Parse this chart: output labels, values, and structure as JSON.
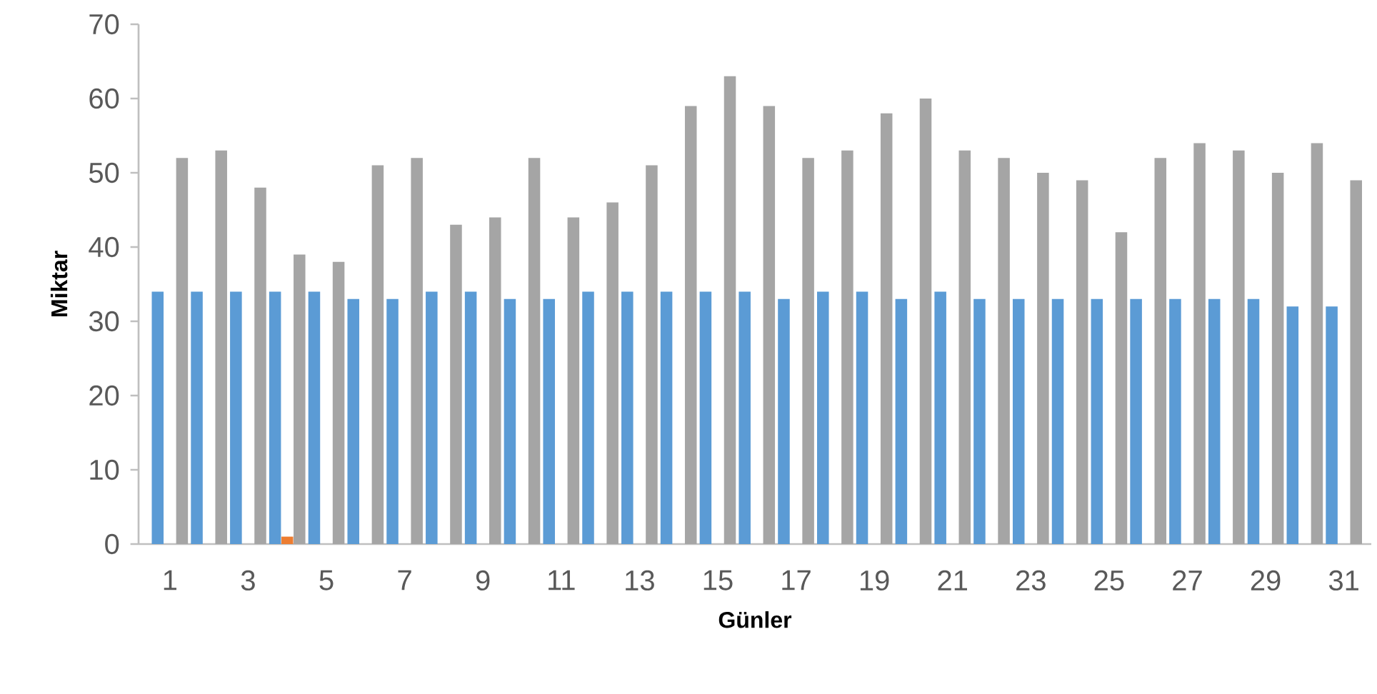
{
  "chart_data": {
    "type": "bar",
    "xlabel": "Günler",
    "ylabel": "Miktar",
    "categories": [
      "1",
      null,
      "3",
      null,
      "5",
      null,
      "7",
      null,
      "9",
      null,
      "11",
      null,
      "13",
      null,
      "15",
      null,
      "17",
      null,
      "19",
      null,
      "21",
      null,
      "23",
      null,
      "25",
      null,
      "27",
      null,
      "29",
      null,
      "31"
    ],
    "series": [
      {
        "color": "#5b9bd5",
        "values": [
          34,
          34,
          34,
          34,
          34,
          33,
          33,
          34,
          34,
          33,
          33,
          34,
          34,
          34,
          34,
          34,
          33,
          34,
          34,
          33,
          34,
          33,
          33,
          33,
          33,
          33,
          33,
          33,
          33,
          32,
          32
        ]
      },
      {
        "color": "#ed7d31",
        "values": [
          null,
          null,
          null,
          1,
          null,
          null,
          null,
          null,
          null,
          null,
          null,
          null,
          null,
          null,
          null,
          null,
          null,
          null,
          null,
          null,
          null,
          null,
          null,
          null,
          null,
          null,
          null,
          null,
          null,
          null,
          null
        ]
      },
      {
        "color": "#a5a5a5",
        "values": [
          52,
          53,
          48,
          39,
          38,
          51,
          52,
          43,
          44,
          52,
          44,
          46,
          51,
          59,
          63,
          59,
          52,
          53,
          58,
          60,
          53,
          52,
          50,
          49,
          42,
          52,
          54,
          53,
          50,
          54,
          49
        ]
      }
    ],
    "ylim": [
      0,
      70
    ],
    "yticks": [
      0,
      10,
      20,
      30,
      40,
      50,
      60,
      70
    ]
  }
}
